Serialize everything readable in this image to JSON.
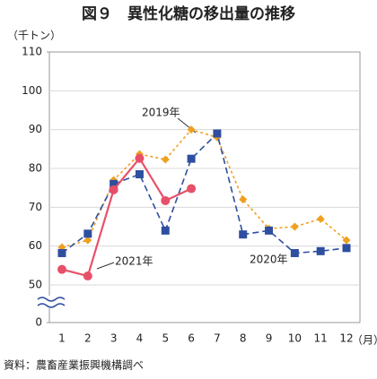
{
  "chart_data": {
    "type": "line",
    "title": "図９　異性化糖の移出量の推移",
    "y_unit": "（千トン）",
    "x_unit": "（月）",
    "source": "資料：農畜産業振興機構調べ",
    "categories": [
      "1",
      "2",
      "3",
      "4",
      "5",
      "6",
      "7",
      "8",
      "9",
      "10",
      "11",
      "12"
    ],
    "series": [
      {
        "name": "2019年",
        "color": "#f0a020",
        "dash": "dotted",
        "marker": "diamond",
        "values": [
          59.7,
          61.5,
          77,
          83.7,
          82.3,
          90,
          88,
          72,
          64.5,
          65,
          67,
          61.5
        ]
      },
      {
        "name": "2020年",
        "color": "#2e4fa0",
        "dash": "dashed",
        "marker": "square",
        "values": [
          58.2,
          63.2,
          76,
          78.5,
          64,
          82.5,
          89,
          63,
          64,
          58.2,
          58.7,
          59.5
        ]
      },
      {
        "name": "2021年",
        "color": "#e8506a",
        "dash": "solid",
        "marker": "circle",
        "values": [
          54,
          52.3,
          74.5,
          82.6,
          71.7,
          74.8,
          null,
          null,
          null,
          null,
          null,
          null
        ]
      }
    ],
    "ylim": [
      0,
      110
    ],
    "yticks": [
      0,
      50,
      60,
      70,
      80,
      90,
      100,
      110
    ],
    "axis_break": true,
    "grid": true
  }
}
